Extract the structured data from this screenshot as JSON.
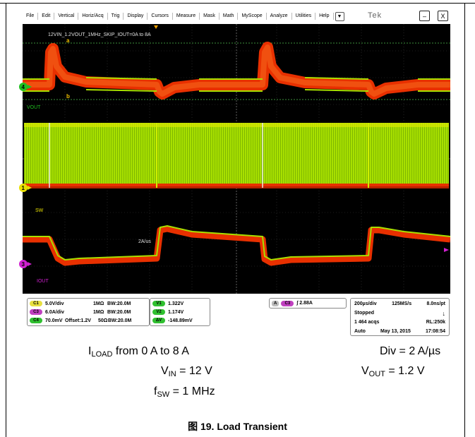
{
  "menu": [
    "File",
    "Edit",
    "Vertical",
    "Horiz/Acq",
    "Trig",
    "Display",
    "Cursors",
    "Measure",
    "Mask",
    "Math",
    "MyScope",
    "Analyze",
    "Utilities",
    "Help"
  ],
  "menu_dropdown_glyph": "▼",
  "window": {
    "logo": "Tek",
    "minimize": "–",
    "close": "X"
  },
  "scope": {
    "annotation_title": "12VIN_1.2VOUT_1MHz_SKIP_IOUT=0A to 8A",
    "cursor_a": "a",
    "cursor_b": "b",
    "label_vout": "VOUT",
    "label_sw": "SW",
    "label_iout": "IOUT",
    "label_slew": "2A/us",
    "marker_ch4": "4",
    "marker_ch1": "1",
    "marker_ch3": "3",
    "colors": {
      "background": "#000000",
      "trace_green": "#a8e000",
      "trace_red": "#e83000",
      "vout_marker": "#20c020",
      "sw_marker": "#e8e000",
      "iout_marker": "#d020d0",
      "ref_line": "#50c050"
    }
  },
  "channels": [
    {
      "badge": "C1",
      "scale": "5.0V/div",
      "coupling": "1MΩ",
      "bw": "BW:20.0M",
      "offset": "",
      "color": "#e8e040"
    },
    {
      "badge": "C3",
      "scale": "6.0A/div",
      "coupling": "1MΩ",
      "bw": "BW:20.0M",
      "offset": "",
      "color": "#c040c0"
    },
    {
      "badge": "C4",
      "scale": "70.0mV",
      "coupling": "50Ω",
      "bw": "BW:20.0M",
      "offset": "Offset:1.2V",
      "color": "#30c030"
    }
  ],
  "measurements": [
    {
      "badge": "V1",
      "value": "1.322V"
    },
    {
      "badge": "V2",
      "value": "1.174V"
    },
    {
      "badge": "ΔV",
      "value": "-148.89mV"
    }
  ],
  "trigger": {
    "mode": "A",
    "channel": "C3",
    "slope": "∫",
    "level": "2.88A"
  },
  "acquisition": {
    "timebase": "200µs/div",
    "samplerate": "125MS/s",
    "resolution": "8.0ns/pt",
    "state": "Stopped",
    "acqs": "1 464 acqs",
    "record": "RL:250k",
    "mode": "Auto",
    "date": "May 13, 2015",
    "time": "17:08:54"
  },
  "caption": {
    "iload_prefix": "I",
    "iload_sub": "LOAD",
    "iload_rest": " from 0 A to 8 A",
    "vin_prefix": "V",
    "vin_sub": "IN",
    "vin_rest": " = 12 V",
    "fsw_prefix": "f",
    "fsw_sub": "SW",
    "fsw_rest": " = 1 MHz",
    "div": "Div = 2 A/µs",
    "vout_prefix": "V",
    "vout_sub": "OUT",
    "vout_rest": " = 1.2 V",
    "figure": "图 19. Load Transient"
  }
}
